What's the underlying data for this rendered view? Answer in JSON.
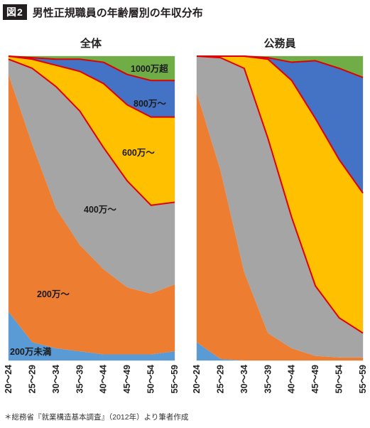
{
  "figure": {
    "badge": "図2",
    "title": "男性正規職員の年齢層別の年収分布"
  },
  "source_note": "＊総務省『就業構造基本調査』（2012年）より筆者作成",
  "colors": {
    "band_under_200": "#5b9bd5",
    "band_200": "#ed7d31",
    "band_400": "#a5a5a5",
    "band_600": "#ffc000",
    "band_800": "#4472c4",
    "band_1000": "#70ad47",
    "boundary_line": "#e00000"
  },
  "chart_data": [
    {
      "type": "area",
      "stacked": true,
      "normalized": true,
      "title": "全体",
      "categories": [
        "20～24",
        "25～29",
        "30～34",
        "35～39",
        "40～44",
        "45～49",
        "50～54",
        "55～59"
      ],
      "ylim": [
        0,
        100
      ],
      "series": [
        {
          "name": "200万未満",
          "values": [
            16,
            6,
            4,
            3,
            2,
            2,
            2,
            3
          ]
        },
        {
          "name": "200万～",
          "values": [
            78,
            65,
            46,
            35,
            28,
            22,
            20,
            22
          ]
        },
        {
          "name": "400万～",
          "values": [
            5,
            25,
            40,
            44,
            40,
            35,
            29,
            27
          ]
        },
        {
          "name": "600万～",
          "values": [
            1,
            3,
            7,
            13,
            21,
            25,
            29,
            28
          ]
        },
        {
          "name": "800万～",
          "values": [
            0,
            0.5,
            2,
            4,
            7,
            10,
            12,
            12
          ]
        },
        {
          "name": "1000万超",
          "values": [
            0,
            0.5,
            1,
            1,
            2,
            6,
            8,
            8
          ]
        }
      ],
      "inline_labels": [
        "200万未満",
        "200万～",
        "400万～",
        "600万～",
        "800万～",
        "1000万超"
      ],
      "grid": false,
      "legend": "inline"
    },
    {
      "type": "area",
      "stacked": true,
      "normalized": true,
      "title": "公務員",
      "categories": [
        "20～24",
        "25～29",
        "30～34",
        "35～39",
        "40～44",
        "45～49",
        "50～54",
        "55～59"
      ],
      "ylim": [
        0,
        100
      ],
      "series": [
        {
          "name": "200万未満",
          "values": [
            6,
            0.5,
            0,
            0,
            0,
            0,
            0,
            0
          ]
        },
        {
          "name": "200万～",
          "values": [
            82,
            62,
            29,
            9,
            4,
            1.5,
            1,
            1
          ]
        },
        {
          "name": "400万～",
          "values": [
            12,
            37,
            67,
            64,
            43,
            23,
            13,
            8
          ]
        },
        {
          "name": "600万～",
          "values": [
            0,
            0.5,
            4,
            26,
            45,
            55,
            52,
            46
          ]
        },
        {
          "name": "800万～",
          "values": [
            0,
            0,
            0,
            0.5,
            6,
            19,
            30,
            38
          ]
        },
        {
          "name": "1000万超",
          "values": [
            0,
            0,
            0,
            0.5,
            2,
            1.5,
            4,
            7
          ]
        }
      ],
      "grid": false,
      "legend": "inline"
    }
  ]
}
